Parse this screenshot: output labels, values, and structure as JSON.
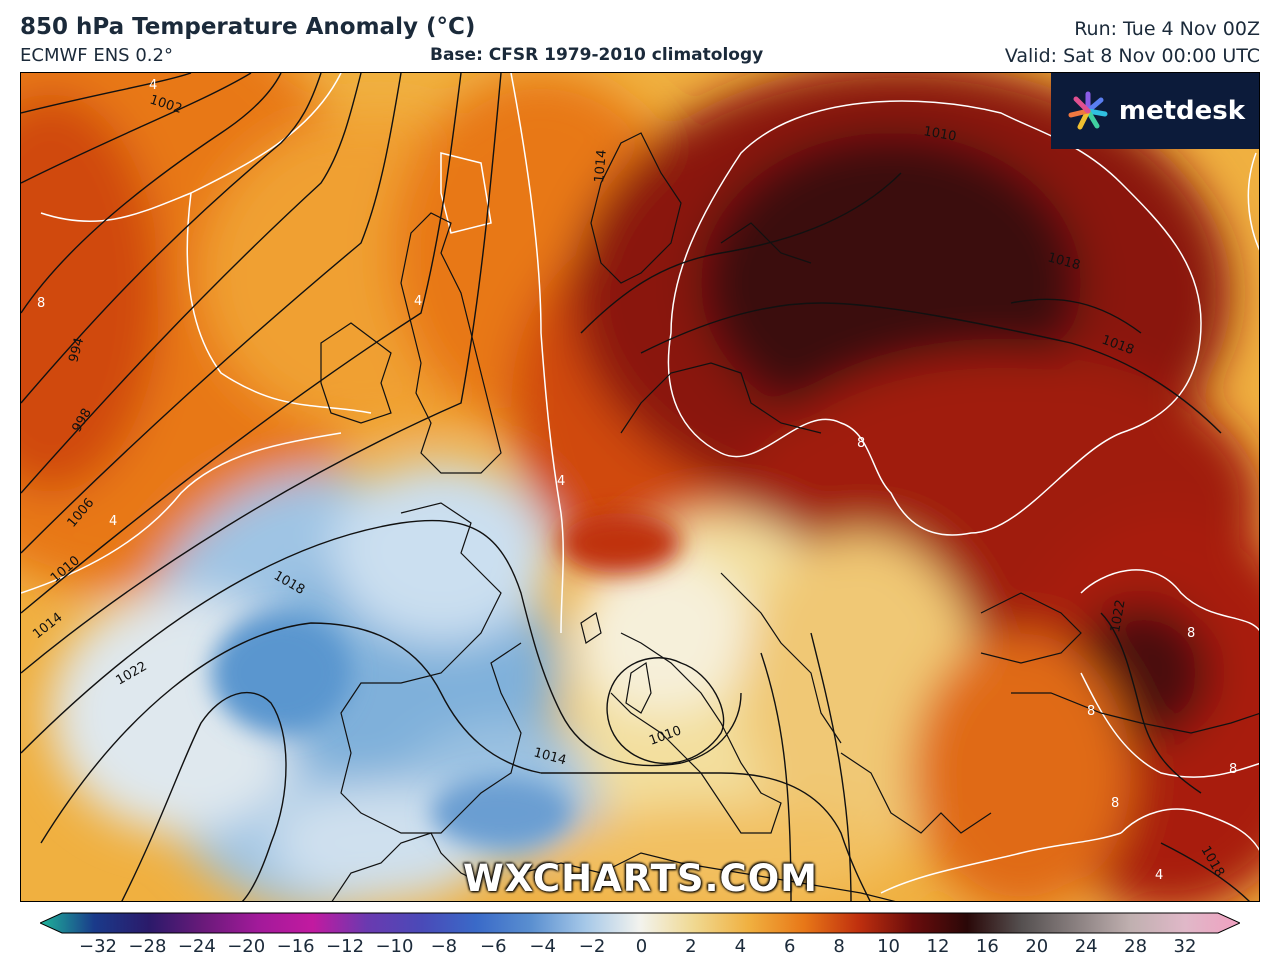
{
  "header": {
    "title": "850 hPa Temperature Anomaly (°C)",
    "model": "ECMWF ENS 0.2°",
    "base": "Base: CFSR 1979-2010 climatology",
    "run": "Run: Tue 4 Nov 00Z",
    "valid": "Valid: Sat 8 Nov 00:00 UTC"
  },
  "logo": {
    "text": "metdesk"
  },
  "watermark": "WXCHARTS.COM",
  "colorbar": {
    "ticks": [
      "−32",
      "−28",
      "−24",
      "−20",
      "−16",
      "−12",
      "−10",
      "−8",
      "−6",
      "−4",
      "−2",
      "0",
      "2",
      "4",
      "6",
      "8",
      "10",
      "12",
      "16",
      "20",
      "24",
      "28",
      "32"
    ]
  },
  "map": {
    "isobar_labels": [
      "1002",
      "994",
      "998",
      "1006",
      "1010",
      "1014",
      "1018",
      "1022",
      "1014",
      "1010",
      "1014",
      "1010",
      "1018",
      "1018",
      "1022",
      "1018"
    ],
    "anomaly_labels": [
      "4",
      "4",
      "8",
      "4",
      "8",
      "8",
      "8",
      "8",
      "8",
      "4",
      "4"
    ]
  },
  "colors": {
    "anomaly_scale": [
      "#1fb59a",
      "#1a3a8a",
      "#2b1a6a",
      "#6a1a7a",
      "#a21a9a",
      "#c21aa0",
      "#6a3ab0",
      "#4a4ab8",
      "#3a6ac8",
      "#5a8fd0",
      "#a6c8e8",
      "#f3f3ee",
      "#f0d890",
      "#f0b040",
      "#e87818",
      "#c0300e",
      "#6a0c0c",
      "#2a0808",
      "#555050",
      "#8a8080",
      "#c0b0b0",
      "#e0b8c8",
      "#f0a0c0"
    ]
  }
}
